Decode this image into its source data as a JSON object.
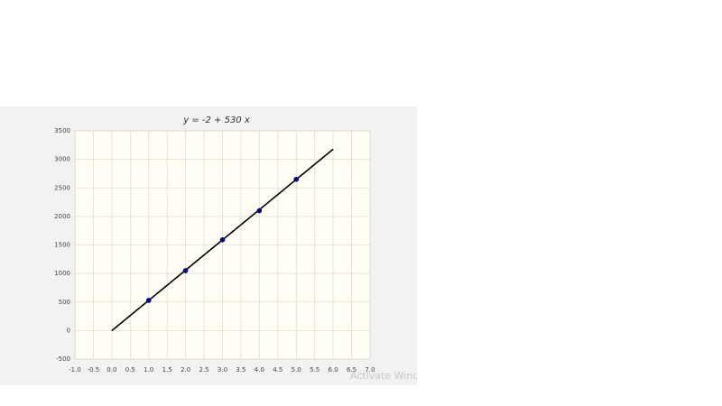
{
  "chart_data": {
    "type": "scatter",
    "title": "y = -2 + 530 x",
    "series": [
      {
        "type": "scatter",
        "color": "#000080",
        "x": [
          1,
          2,
          3,
          4,
          5
        ],
        "values": [
          528,
          1050,
          1590,
          2100,
          2650
        ]
      },
      {
        "type": "line",
        "color": "#000000",
        "x": [
          0,
          6
        ],
        "values": [
          -2,
          3178
        ]
      }
    ],
    "xlim": [
      -1,
      7
    ],
    "xticks": [
      {
        "value": -1,
        "label": "-1.0"
      },
      {
        "value": -0.5,
        "label": "-0.5"
      },
      {
        "value": 0,
        "label": "0.0"
      },
      {
        "value": 0.5,
        "label": "0.5"
      },
      {
        "value": 1,
        "label": "1.0"
      },
      {
        "value": 1.5,
        "label": "1.5"
      },
      {
        "value": 2,
        "label": "2.0"
      },
      {
        "value": 2.5,
        "label": "2.5"
      },
      {
        "value": 3,
        "label": "3.0"
      },
      {
        "value": 3.5,
        "label": "3.5"
      },
      {
        "value": 4,
        "label": "4.0"
      },
      {
        "value": 4.5,
        "label": "4.5"
      },
      {
        "value": 5,
        "label": "5.0"
      },
      {
        "value": 5.5,
        "label": "5.5"
      },
      {
        "value": 6,
        "label": "6.0"
      },
      {
        "value": 6.5,
        "label": "6.5"
      },
      {
        "value": 7,
        "label": "7.0"
      }
    ],
    "ylim": [
      -500,
      3500
    ],
    "yticks": [
      -500,
      0,
      500,
      1000,
      1500,
      2000,
      2500,
      3000,
      3500
    ],
    "grid": true,
    "watermark": "Activate Windows"
  }
}
